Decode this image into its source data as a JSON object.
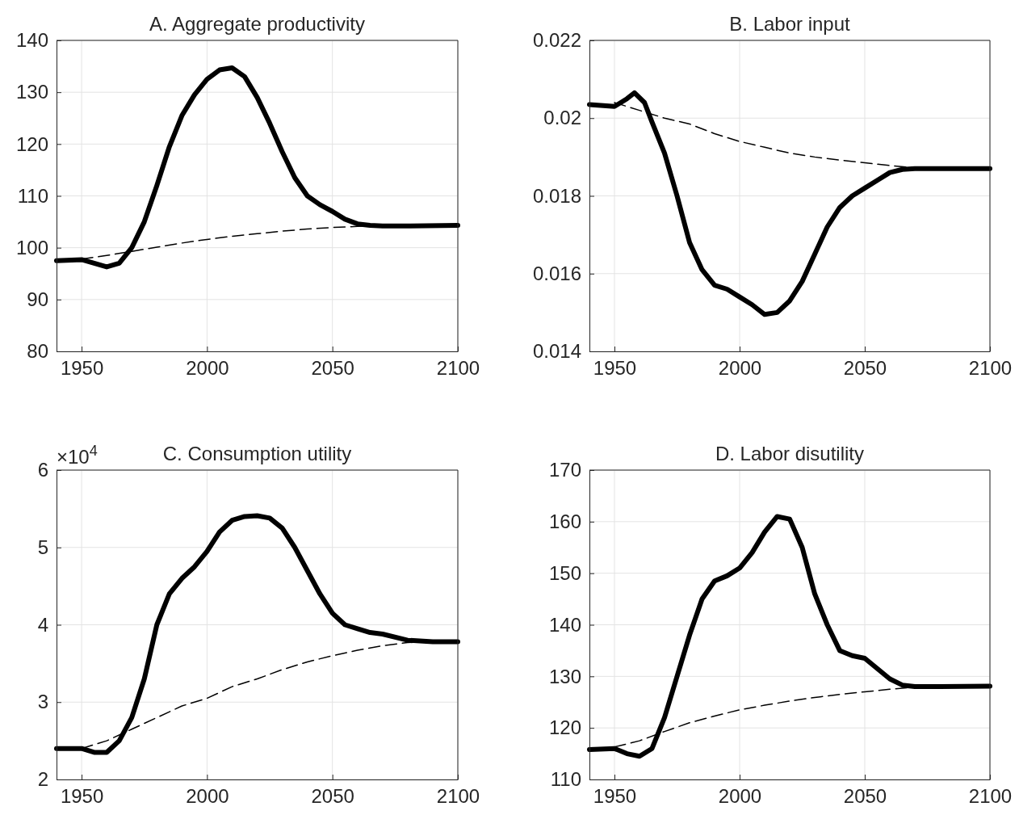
{
  "chart_data": [
    {
      "type": "line",
      "title": "A. Aggregate productivity",
      "xlim": [
        1940,
        2100
      ],
      "xticks": [
        1950,
        2000,
        2050,
        2100
      ],
      "ylim": [
        80,
        140
      ],
      "yticks": [
        80,
        90,
        100,
        110,
        120,
        130,
        140
      ],
      "grid": true,
      "series": [
        {
          "color": "#000000",
          "line_style": "solid",
          "x": [
            1940,
            1950,
            1960,
            1965,
            1970,
            1975,
            1980,
            1985,
            1990,
            1995,
            2000,
            2005,
            2010,
            2015,
            2020,
            2025,
            2030,
            2035,
            2040,
            2045,
            2050,
            2055,
            2060,
            2065,
            2070,
            2080,
            2100
          ],
          "values": [
            97.5,
            97.7,
            96.3,
            97,
            100,
            105,
            112,
            119.5,
            125.5,
            129.5,
            132.5,
            134.3,
            134.7,
            133,
            129,
            124,
            118.5,
            113.5,
            110,
            108.3,
            107,
            105.5,
            104.6,
            104.3,
            104.2,
            104.2,
            104.3
          ]
        },
        {
          "color": "#000000",
          "line_style": "dashed",
          "x": [
            1950,
            1960,
            1970,
            1980,
            1990,
            2000,
            2010,
            2020,
            2030,
            2040,
            2050,
            2060,
            2070
          ],
          "values": [
            97.8,
            98.5,
            99.3,
            100.1,
            100.9,
            101.6,
            102.2,
            102.7,
            103.2,
            103.6,
            103.9,
            104.1,
            104.3
          ]
        }
      ]
    },
    {
      "type": "line",
      "title": "B. Labor input",
      "xlim": [
        1940,
        2100
      ],
      "xticks": [
        1950,
        2000,
        2050,
        2100
      ],
      "ylim": [
        0.014,
        0.022
      ],
      "yticks": [
        0.014,
        0.016,
        0.018,
        0.02,
        0.022
      ],
      "grid": true,
      "series": [
        {
          "color": "#000000",
          "line_style": "solid",
          "x": [
            1940,
            1950,
            1955,
            1958,
            1962,
            1965,
            1970,
            1975,
            1980,
            1985,
            1990,
            1995,
            2000,
            2005,
            2010,
            2015,
            2020,
            2025,
            2030,
            2035,
            2040,
            2045,
            2050,
            2055,
            2060,
            2065,
            2070,
            2080,
            2100
          ],
          "values": [
            0.02035,
            0.0203,
            0.0205,
            0.02065,
            0.0204,
            0.0199,
            0.0191,
            0.018,
            0.0168,
            0.0161,
            0.0157,
            0.0156,
            0.0154,
            0.0152,
            0.01495,
            0.015,
            0.0153,
            0.0158,
            0.0165,
            0.0172,
            0.0177,
            0.018,
            0.0182,
            0.0184,
            0.0186,
            0.01868,
            0.0187,
            0.0187,
            0.0187
          ]
        },
        {
          "color": "#000000",
          "line_style": "dashed",
          "x": [
            1950,
            1960,
            1970,
            1980,
            1990,
            2000,
            2010,
            2020,
            2030,
            2040,
            2050,
            2060,
            2070
          ],
          "values": [
            0.0204,
            0.0202,
            0.02,
            0.01985,
            0.0196,
            0.0194,
            0.01925,
            0.0191,
            0.019,
            0.01892,
            0.01885,
            0.01878,
            0.01872
          ]
        }
      ]
    },
    {
      "type": "line",
      "title": "C. Consumption utility",
      "annotations": [
        "×10$^{4}$"
      ],
      "xlim": [
        1940,
        2100
      ],
      "xticks": [
        1950,
        2000,
        2050,
        2100
      ],
      "ylim": [
        2,
        6
      ],
      "yticks": [
        2,
        3,
        4,
        5,
        6
      ],
      "grid": true,
      "series": [
        {
          "color": "#000000",
          "line_style": "solid",
          "x": [
            1940,
            1950,
            1955,
            1960,
            1965,
            1970,
            1975,
            1980,
            1985,
            1990,
            1995,
            2000,
            2005,
            2010,
            2015,
            2020,
            2025,
            2030,
            2035,
            2040,
            2045,
            2050,
            2055,
            2060,
            2065,
            2070,
            2080,
            2090,
            2100
          ],
          "values": [
            2.4,
            2.4,
            2.35,
            2.35,
            2.5,
            2.8,
            3.3,
            4.0,
            4.4,
            4.6,
            4.75,
            4.95,
            5.2,
            5.35,
            5.4,
            5.41,
            5.38,
            5.25,
            5.0,
            4.7,
            4.4,
            4.15,
            4.0,
            3.95,
            3.9,
            3.88,
            3.8,
            3.78,
            3.78
          ]
        },
        {
          "color": "#000000",
          "line_style": "dashed",
          "x": [
            1950,
            1960,
            1970,
            1980,
            1990,
            2000,
            2010,
            2020,
            2030,
            2040,
            2050,
            2060,
            2070,
            2080,
            2090
          ],
          "values": [
            2.4,
            2.5,
            2.65,
            2.8,
            2.95,
            3.05,
            3.2,
            3.3,
            3.42,
            3.52,
            3.6,
            3.67,
            3.73,
            3.77,
            3.78
          ]
        }
      ]
    },
    {
      "type": "line",
      "title": "D. Labor disutility",
      "xlim": [
        1940,
        2100
      ],
      "xticks": [
        1950,
        2000,
        2050,
        2100
      ],
      "ylim": [
        110,
        170
      ],
      "yticks": [
        110,
        120,
        130,
        140,
        150,
        160,
        170
      ],
      "grid": true,
      "series": [
        {
          "color": "#000000",
          "line_style": "solid",
          "x": [
            1940,
            1950,
            1955,
            1960,
            1965,
            1970,
            1975,
            1980,
            1985,
            1990,
            1995,
            2000,
            2005,
            2010,
            2015,
            2020,
            2025,
            2030,
            2035,
            2040,
            2045,
            2050,
            2055,
            2060,
            2065,
            2070,
            2080,
            2100
          ],
          "values": [
            115.8,
            116,
            115,
            114.5,
            116,
            122,
            130,
            138,
            145,
            148.5,
            149.5,
            151,
            154,
            158,
            161,
            160.5,
            155,
            146,
            140,
            135,
            134,
            133.5,
            131.5,
            129.5,
            128.3,
            128,
            128,
            128.1
          ]
        },
        {
          "color": "#000000",
          "line_style": "dashed",
          "x": [
            1950,
            1960,
            1970,
            1980,
            1990,
            2000,
            2010,
            2020,
            2030,
            2040,
            2050,
            2060,
            2070
          ],
          "values": [
            116.3,
            117.5,
            119.3,
            121,
            122.3,
            123.5,
            124.4,
            125.2,
            125.9,
            126.5,
            127,
            127.5,
            127.9
          ]
        }
      ]
    }
  ]
}
